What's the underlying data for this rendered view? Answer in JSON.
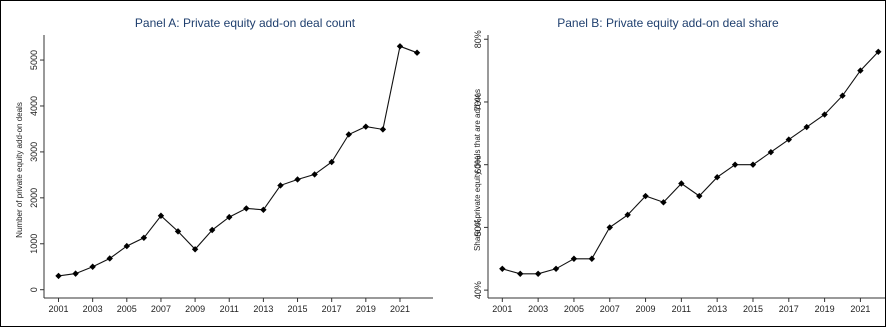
{
  "chart_data": [
    {
      "type": "line",
      "title": "Panel A: Private equity add-on deal count",
      "xlabel": "",
      "ylabel": "Number of private equity add-on deals",
      "x": [
        2001,
        2002,
        2003,
        2004,
        2005,
        2006,
        2007,
        2008,
        2009,
        2010,
        2011,
        2012,
        2013,
        2014,
        2015,
        2016,
        2017,
        2018,
        2019,
        2020,
        2021,
        2022
      ],
      "values": [
        300,
        350,
        500,
        680,
        950,
        1130,
        1610,
        1270,
        880,
        1300,
        1580,
        1770,
        1740,
        2270,
        2400,
        2510,
        2780,
        3380,
        3550,
        3490,
        5300,
        5160
      ],
      "xticks": [
        "2001",
        "2003",
        "2005",
        "2007",
        "2009",
        "2011",
        "2013",
        "2015",
        "2017",
        "2019",
        "2021"
      ],
      "yticks": [
        "0",
        "1000",
        "2000",
        "3000",
        "4000",
        "5000"
      ],
      "ylim": [
        0,
        5300
      ],
      "marker": "diamond",
      "grid": false
    },
    {
      "type": "line",
      "title": "Panel B: Private equity add-on deal share",
      "xlabel": "",
      "ylabel": "Share of private equity deals that are add-ons",
      "x": [
        2001,
        2002,
        2003,
        2004,
        2005,
        2006,
        2007,
        2008,
        2009,
        2010,
        2011,
        2012,
        2013,
        2014,
        2015,
        2016,
        2017,
        2018,
        2019,
        2020,
        2021,
        2022
      ],
      "values": [
        43.4,
        42.6,
        42.6,
        43.4,
        45.0,
        45.0,
        50.0,
        52.0,
        55.0,
        54.0,
        57.0,
        55.0,
        58.0,
        60.0,
        60.0,
        62.0,
        64.0,
        66.0,
        68.0,
        71.0,
        75.0,
        78.0
      ],
      "xticks": [
        "2001",
        "2003",
        "2005",
        "2007",
        "2009",
        "2011",
        "2013",
        "2015",
        "2017",
        "2019",
        "2021"
      ],
      "yticks": [
        "40%",
        "50%",
        "60%",
        "70%",
        "80%"
      ],
      "ylim": [
        40,
        80
      ],
      "marker": "diamond",
      "grid": false
    }
  ]
}
